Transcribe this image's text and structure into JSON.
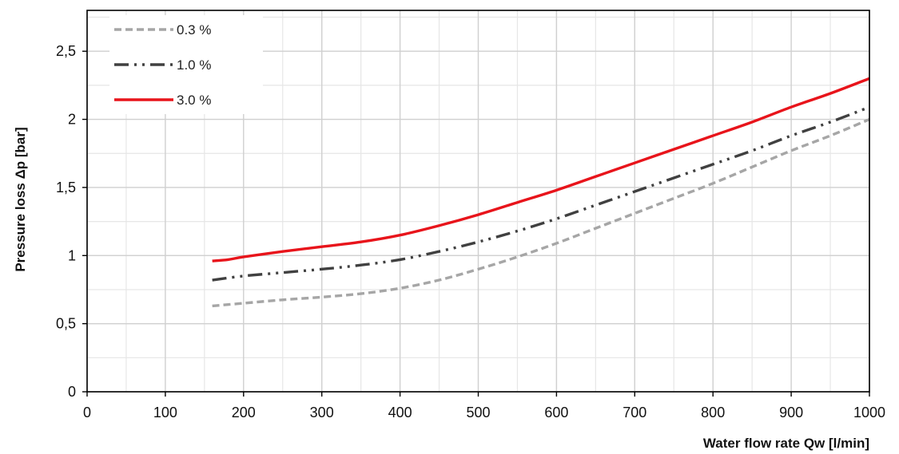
{
  "chart_data": {
    "type": "line",
    "title": "",
    "xlabel": "Water flow rate Qw [l/min]",
    "ylabel": "Pressure loss Δp [bar]",
    "xlim": [
      0,
      1000
    ],
    "ylim": [
      0,
      2.8
    ],
    "x_ticks": [
      "0",
      "100",
      "200",
      "300",
      "400",
      "500",
      "600",
      "700",
      "800",
      "900",
      "1000"
    ],
    "x_tick_values": [
      0,
      100,
      200,
      300,
      400,
      500,
      600,
      700,
      800,
      900,
      1000
    ],
    "y_ticks": [
      "0",
      "0,5",
      "1",
      "1,5",
      "2",
      "2,5"
    ],
    "y_tick_values": [
      0,
      0.5,
      1,
      1.5,
      2,
      2.5
    ],
    "x_minor_step": 50,
    "y_minor_step": 0.25,
    "grid": true,
    "legend_position": "top-left",
    "series": [
      {
        "name": "0.3 %",
        "color": "#a6a6a6",
        "style": "dashed",
        "x": [
          160,
          200,
          250,
          300,
          350,
          400,
          450,
          500,
          550,
          600,
          650,
          700,
          750,
          800,
          850,
          900,
          950,
          1000
        ],
        "y": [
          0.63,
          0.65,
          0.675,
          0.695,
          0.72,
          0.76,
          0.82,
          0.9,
          0.99,
          1.09,
          1.2,
          1.31,
          1.42,
          1.53,
          1.65,
          1.77,
          1.88,
          2.0
        ]
      },
      {
        "name": "1.0 %",
        "color": "#404040",
        "style": "dash-dot-dot",
        "x": [
          160,
          200,
          250,
          300,
          350,
          400,
          450,
          500,
          550,
          600,
          650,
          700,
          750,
          800,
          850,
          900,
          950,
          1000
        ],
        "y": [
          0.82,
          0.85,
          0.875,
          0.9,
          0.93,
          0.97,
          1.03,
          1.1,
          1.18,
          1.27,
          1.37,
          1.47,
          1.57,
          1.67,
          1.77,
          1.88,
          1.98,
          2.09
        ]
      },
      {
        "name": "3.0 %",
        "color": "#e8141b",
        "style": "solid",
        "x": [
          160,
          180,
          200,
          250,
          300,
          350,
          400,
          450,
          500,
          550,
          600,
          650,
          700,
          750,
          800,
          850,
          900,
          950,
          1000
        ],
        "y": [
          0.96,
          0.97,
          0.99,
          1.03,
          1.065,
          1.1,
          1.15,
          1.22,
          1.3,
          1.39,
          1.48,
          1.58,
          1.68,
          1.78,
          1.88,
          1.98,
          2.09,
          2.19,
          2.3
        ]
      }
    ]
  }
}
